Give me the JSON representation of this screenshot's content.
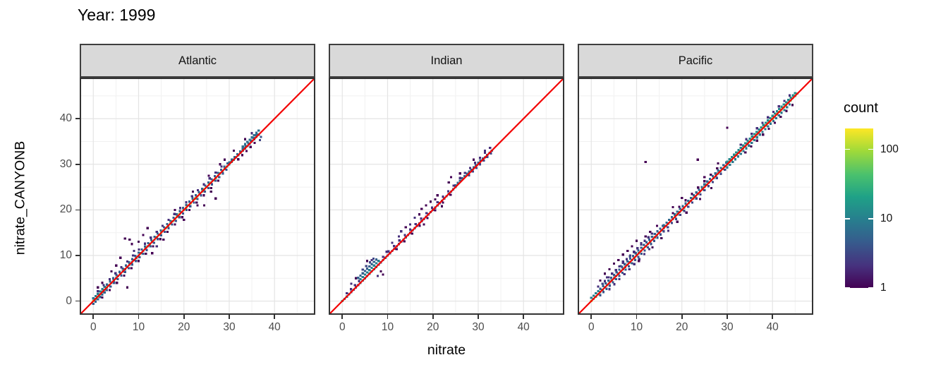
{
  "title": "Year: 1999",
  "axes": {
    "x_label": "nitrate",
    "y_label": "nitrate_CANYONB",
    "x_ticks": [
      0,
      10,
      20,
      30,
      40
    ],
    "y_ticks": [
      0,
      10,
      20,
      30,
      40
    ],
    "minor_ticks": [
      5,
      15,
      25,
      35,
      45
    ],
    "range": [
      -3,
      49
    ]
  },
  "legend": {
    "title": "count",
    "tick_labels": [
      "100",
      "10",
      "1"
    ],
    "tick_values": [
      100,
      10,
      1
    ],
    "max_count": 200,
    "scale": "log10"
  },
  "colors": {
    "identity_line": "#f30000",
    "strip_bg": "#d9d9d9",
    "strip_border": "#3f3f3f",
    "panel_border": "#333333",
    "grid_major": "#e4e4e4",
    "grid_minor": "#f1f1f1",
    "axis_text": "#4d4d4d",
    "viridis_stops": [
      [
        0.0,
        "#440154"
      ],
      [
        0.14,
        "#46327e"
      ],
      [
        0.29,
        "#365c8d"
      ],
      [
        0.43,
        "#277f8e"
      ],
      [
        0.57,
        "#1fa187"
      ],
      [
        0.71,
        "#4ac16d"
      ],
      [
        0.86,
        "#a0da39"
      ],
      [
        1.0,
        "#fde725"
      ]
    ]
  },
  "chart_data": {
    "type": "heatmap",
    "subtype": "bin2d-facets",
    "title": "Year: 1999",
    "xlabel": "nitrate",
    "ylabel": "nitrate_CANYONB",
    "axis_range": [
      -3,
      49
    ],
    "identity_line": {
      "from": [
        -3,
        -3
      ],
      "to": [
        49,
        49
      ],
      "color": "#f30000"
    },
    "legend_max_count": 200,
    "bin_size": 0.5,
    "facets": [
      {
        "name": "Atlantic",
        "line_extent": [
          0,
          36.5
        ],
        "segments": [
          {
            "from": 0,
            "to": 0.5,
            "count": 160
          },
          {
            "from": 0.5,
            "to": 2,
            "count": 60
          },
          {
            "from": 2,
            "to": 4,
            "count": 35
          },
          {
            "from": 4,
            "to": 7,
            "count": 15
          },
          {
            "from": 7,
            "to": 9,
            "count": 12
          },
          {
            "from": 9,
            "to": 12,
            "count": 22
          },
          {
            "from": 12,
            "to": 15,
            "count": 45
          },
          {
            "from": 15,
            "to": 18,
            "count": 60
          },
          {
            "from": 18,
            "to": 21,
            "count": 75
          },
          {
            "from": 21,
            "to": 24,
            "count": 90
          },
          {
            "from": 24,
            "to": 26,
            "count": 60
          },
          {
            "from": 26,
            "to": 28,
            "count": 45
          },
          {
            "from": 28,
            "to": 30,
            "count": 28
          },
          {
            "from": 30,
            "to": 33,
            "count": 15
          },
          {
            "from": 33,
            "to": 36.5,
            "count": 10
          }
        ],
        "bands": [
          {
            "from": 0,
            "to": 3,
            "dy": 0.6,
            "count": 8,
            "step": 0.5
          },
          {
            "from": 0,
            "to": 3,
            "dy": -0.6,
            "count": 5,
            "step": 0.5
          },
          {
            "from": 3,
            "to": 30,
            "dy": 0.6,
            "count": 5,
            "step": 0.7
          },
          {
            "from": 3,
            "to": 30,
            "dy": -0.6,
            "count": 4,
            "step": 0.8
          },
          {
            "from": 1,
            "to": 29,
            "dy": 1.2,
            "count": 2,
            "step": 1.3
          },
          {
            "from": 2,
            "to": 28,
            "dy": -1.2,
            "count": 1,
            "step": 1.6
          },
          {
            "from": 30,
            "to": 36.5,
            "dy": 0.4,
            "count": 6,
            "step": 0.6
          },
          {
            "from": 33,
            "to": 36.5,
            "dy": 0.9,
            "count": 7,
            "step": 0.5
          },
          {
            "from": 32,
            "to": 36,
            "dy": -0.9,
            "count": 1,
            "step": 0.9
          }
        ],
        "scatter": [
          [
            7,
            13.7,
            1
          ],
          [
            8,
            13.5,
            1
          ],
          [
            8.5,
            12.5,
            1
          ],
          [
            9,
            11,
            2
          ],
          [
            10,
            13,
            1
          ],
          [
            11,
            14.5,
            1
          ],
          [
            6,
            9.5,
            1
          ],
          [
            5,
            7.8,
            1
          ],
          [
            4,
            6.5,
            1
          ],
          [
            7.5,
            3,
            1
          ],
          [
            13,
            10.5,
            1
          ],
          [
            27,
            22.5,
            1
          ],
          [
            24.5,
            21,
            1
          ],
          [
            12,
            16,
            1
          ],
          [
            15.5,
            13.5,
            1
          ],
          [
            18,
            20,
            1
          ],
          [
            22,
            24,
            1
          ],
          [
            25.5,
            27.5,
            1
          ],
          [
            28,
            30,
            1
          ],
          [
            31,
            33,
            1
          ],
          [
            33.5,
            35.5,
            1
          ],
          [
            35,
            36.8,
            2
          ],
          [
            36.8,
            35.3,
            3
          ],
          [
            37,
            36,
            4
          ],
          [
            2,
            4,
            1
          ],
          [
            1,
            3,
            1
          ],
          [
            14,
            12,
            2
          ],
          [
            20,
            17.8,
            1
          ],
          [
            23,
            21,
            1
          ],
          [
            26,
            24,
            1
          ],
          [
            29,
            31,
            1
          ],
          [
            5.1,
            7.8,
            1
          ]
        ]
      },
      {
        "name": "Indian",
        "line_extent": [
          0,
          33
        ],
        "segments": [
          {
            "from": 0,
            "to": 0.5,
            "count": 25
          },
          {
            "from": 0.5,
            "to": 2,
            "count": 8
          },
          {
            "from": 2,
            "to": 4,
            "count": 4
          },
          {
            "from": 4,
            "to": 6,
            "count": 10
          },
          {
            "from": 6,
            "to": 8,
            "count": 14
          },
          {
            "from": 8,
            "to": 10,
            "count": 6
          },
          {
            "from": 10,
            "to": 13,
            "count": 4
          },
          {
            "from": 13,
            "to": 16,
            "count": 5
          },
          {
            "from": 16,
            "to": 19,
            "count": 3
          },
          {
            "from": 19,
            "to": 22,
            "count": 4
          },
          {
            "from": 22,
            "to": 25,
            "count": 5
          },
          {
            "from": 25,
            "to": 28,
            "count": 6,
            "dy": 0.4
          },
          {
            "from": 28,
            "to": 31,
            "count": 5,
            "dy": 0.3
          },
          {
            "from": 31,
            "to": 33,
            "count": 6
          }
        ],
        "bands": [
          {
            "from": 4,
            "to": 8,
            "dy": 0.8,
            "count": 10,
            "step": 0.5
          },
          {
            "from": 3.5,
            "to": 7.5,
            "dy": 1.6,
            "count": 5,
            "step": 0.5
          },
          {
            "from": 4.5,
            "to": 7,
            "dy": 2.4,
            "count": 3,
            "step": 0.8
          },
          {
            "from": 1,
            "to": 4,
            "dy": 0.7,
            "count": 2,
            "step": 0.9
          },
          {
            "from": 9,
            "to": 25,
            "dy": 0.7,
            "count": 2,
            "step": 1.2
          },
          {
            "from": 12,
            "to": 24,
            "dy": -0.6,
            "count": 1,
            "step": 1.7
          },
          {
            "from": 26,
            "to": 33,
            "dy": 1.0,
            "count": 2,
            "step": 1.1
          },
          {
            "from": 28,
            "to": 33,
            "dy": -0.4,
            "count": 3,
            "step": 0.8
          }
        ],
        "scatter": [
          [
            8.5,
            6.5,
            1
          ],
          [
            9,
            5.8,
            1
          ],
          [
            7.8,
            5.5,
            2
          ],
          [
            9.8,
            10.8,
            2
          ],
          [
            17,
            19,
            1
          ],
          [
            17.5,
            20.2,
            1
          ],
          [
            18.5,
            21,
            1
          ],
          [
            19.5,
            21.8,
            1
          ],
          [
            16,
            18.3,
            2
          ],
          [
            20.5,
            22.3,
            1
          ],
          [
            23.5,
            26,
            1
          ],
          [
            24,
            27.2,
            1
          ],
          [
            14,
            16.2,
            1
          ],
          [
            13,
            15.3,
            2
          ],
          [
            12.5,
            14.2,
            2
          ],
          [
            11,
            12.8,
            2
          ],
          [
            15,
            16.8,
            2
          ],
          [
            21,
            23.2,
            1
          ],
          [
            6.5,
            9,
            2
          ],
          [
            5.5,
            8.8,
            1
          ],
          [
            3,
            5,
            1
          ],
          [
            2,
            3.8,
            2
          ],
          [
            26,
            28,
            1
          ],
          [
            29,
            31,
            1
          ],
          [
            31.5,
            33,
            2
          ],
          [
            22,
            20.8,
            1
          ],
          [
            18,
            16.8,
            1
          ]
        ]
      },
      {
        "name": "Pacific",
        "line_extent": [
          0,
          45.5
        ],
        "segments": [
          {
            "from": 0,
            "to": 0.5,
            "count": 130
          },
          {
            "from": 0.5,
            "to": 2,
            "count": 45
          },
          {
            "from": 2,
            "to": 5,
            "count": 25
          },
          {
            "from": 5,
            "to": 8,
            "count": 15
          },
          {
            "from": 8,
            "to": 11,
            "count": 20
          },
          {
            "from": 11,
            "to": 14,
            "count": 25
          },
          {
            "from": 14,
            "to": 17,
            "count": 18
          },
          {
            "from": 17,
            "to": 20,
            "count": 25
          },
          {
            "from": 20,
            "to": 23,
            "count": 35
          },
          {
            "from": 23,
            "to": 26,
            "count": 30
          },
          {
            "from": 26,
            "to": 29,
            "count": 25
          },
          {
            "from": 29,
            "to": 32,
            "count": 35
          },
          {
            "from": 32,
            "to": 35,
            "count": 45
          },
          {
            "from": 35,
            "to": 38,
            "count": 60
          },
          {
            "from": 38,
            "to": 41,
            "count": 80
          },
          {
            "from": 41,
            "to": 43.5,
            "count": 90
          },
          {
            "from": 43.5,
            "to": 45.5,
            "count": 50
          }
        ],
        "bands": [
          {
            "from": 0,
            "to": 2,
            "dy": 0.7,
            "count": 10,
            "step": 0.5
          },
          {
            "from": 2,
            "to": 16,
            "dy": 0.7,
            "count": 5,
            "step": 0.6
          },
          {
            "from": 2,
            "to": 16,
            "dy": -0.7,
            "count": 4,
            "step": 0.7
          },
          {
            "from": 3,
            "to": 14,
            "dy": 1.4,
            "count": 2,
            "step": 0.8
          },
          {
            "from": 4,
            "to": 13,
            "dy": -1.4,
            "count": 2,
            "step": 1.1
          },
          {
            "from": 16,
            "to": 30,
            "dy": 0.6,
            "count": 6,
            "step": 0.6
          },
          {
            "from": 16,
            "to": 30,
            "dy": -0.7,
            "count": 3,
            "step": 0.9
          },
          {
            "from": 18,
            "to": 29,
            "dy": 1.3,
            "count": 1,
            "step": 1.4
          },
          {
            "from": 30,
            "to": 45,
            "dy": 0.6,
            "count": 12,
            "step": 0.5
          },
          {
            "from": 30,
            "to": 44,
            "dy": -0.7,
            "count": 8,
            "step": 0.6
          },
          {
            "from": 33,
            "to": 44,
            "dy": 1.3,
            "count": 2,
            "step": 1.2
          },
          {
            "from": 34,
            "to": 45,
            "dy": -1.4,
            "count": 1,
            "step": 1.3
          }
        ],
        "scatter": [
          [
            2,
            4.5,
            1
          ],
          [
            3,
            6,
            1
          ],
          [
            3.5,
            5.2,
            2
          ],
          [
            4,
            7,
            1
          ],
          [
            5,
            8.2,
            1
          ],
          [
            5.5,
            6.8,
            2
          ],
          [
            6,
            9,
            1
          ],
          [
            7,
            8.7,
            2
          ],
          [
            7,
            10.2,
            1
          ],
          [
            8,
            11,
            1
          ],
          [
            9,
            12,
            1
          ],
          [
            9.5,
            10.7,
            2
          ],
          [
            10,
            13.2,
            1
          ],
          [
            11,
            12.7,
            2
          ],
          [
            12,
            14.2,
            1
          ],
          [
            2.5,
            3.8,
            3
          ],
          [
            1.5,
            3.2,
            2
          ],
          [
            6.5,
            7.7,
            3
          ],
          [
            8.5,
            9.8,
            3
          ],
          [
            13,
            15.2,
            1
          ],
          [
            14.5,
            16.5,
            1
          ],
          [
            12,
            30.5,
            1
          ],
          [
            23.5,
            31,
            1
          ],
          [
            30,
            38,
            1
          ],
          [
            18,
            20.6,
            1
          ],
          [
            20,
            22.6,
            1
          ],
          [
            25,
            27.2,
            1
          ],
          [
            28,
            30.2,
            1
          ],
          [
            17,
            15.4,
            2
          ],
          [
            19,
            17.4,
            1
          ],
          [
            21,
            19.4,
            1
          ],
          [
            24,
            22.4,
            1
          ],
          [
            26.5,
            24.8,
            1
          ],
          [
            15.5,
            13.8,
            1
          ],
          [
            10.5,
            8.8,
            1
          ],
          [
            13.5,
            11.8,
            1
          ]
        ]
      }
    ]
  }
}
